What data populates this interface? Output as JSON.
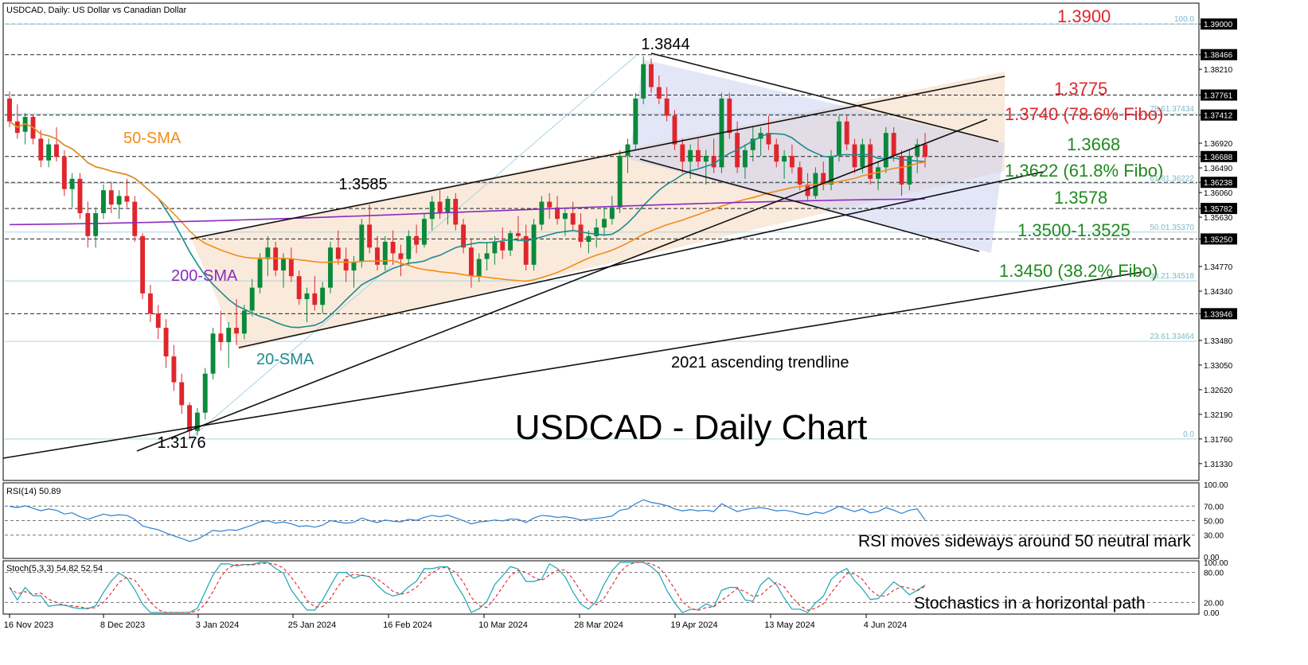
{
  "header": {
    "symbol_line": "USDCAD, Daily:  US Dollar vs Canadian Dollar",
    "rsi_line": "RSI(14) 50.89",
    "stoch_line": "Stoch(5,3,3) 54.82 52.54"
  },
  "colors": {
    "bull": "#0a8a3a",
    "bear": "#e0262c",
    "sma20": "#1c8c8c",
    "sma50": "#f28c1a",
    "sma200": "#8a2bbf",
    "red_label": "#e0262c",
    "green_label": "#1f8a1f",
    "fibo_text": "#7fb8c8",
    "channel_fill": "#f6dcc4",
    "triangle_fill": "#c8cdf0",
    "rsi_line": "#2c7fd0",
    "stoch_main": "#1ba5b5",
    "stoch_signal": "#e0262c"
  },
  "chart_data": {
    "type": "candlestick",
    "title": "USDCAD - Daily Chart",
    "symbol": "USDCAD",
    "timeframe": "Daily",
    "ylim": [
      1.3105,
      1.3935
    ],
    "y_ticks": [
      "1.39000",
      "1.38466",
      "1.38210",
      "1.37761",
      "1.37412",
      "1.36920",
      "1.36688",
      "1.36490",
      "1.36238",
      "1.36060",
      "1.35782",
      "1.35630",
      "1.35250",
      "1.34770",
      "1.34340",
      "1.33946",
      "1.33480",
      "1.33050",
      "1.32620",
      "1.32190",
      "1.31760",
      "1.31330"
    ],
    "x_ticks": [
      "16 Nov 2023",
      "8 Dec 2023",
      "3 Jan 2024",
      "25 Jan 2024",
      "16 Feb 2024",
      "10 Mar 2024",
      "28 Mar 2024",
      "19 Apr 2024",
      "13 May 2024",
      "4 Jun 2024"
    ],
    "horizontal_levels": [
      1.39,
      1.38466,
      1.37761,
      1.37412,
      1.36688,
      1.36238,
      1.35782,
      1.3525,
      1.33946
    ],
    "fibonacci_levels": [
      {
        "label": "100.0",
        "value": 1.39
      },
      {
        "label": "78.61.37434",
        "value": 1.37434
      },
      {
        "label": "61.81.36222",
        "value": 1.36222
      },
      {
        "label": "50.01.35370",
        "value": 1.3537
      },
      {
        "label": "38.21.34518",
        "value": 1.34518
      },
      {
        "label": "23.61.33464",
        "value": 1.33464
      },
      {
        "label": "0.0",
        "value": 1.3176
      }
    ],
    "level_labels": [
      {
        "text": "1.3900",
        "color": "red"
      },
      {
        "text": "1.3775",
        "color": "red"
      },
      {
        "text": "1.3740 (78.6% Fibo)",
        "color": "red"
      },
      {
        "text": "1.3668",
        "color": "green"
      },
      {
        "text": "1.3622 (61.8% Fibo)",
        "color": "green"
      },
      {
        "text": "1.3578",
        "color": "green"
      },
      {
        "text": "1.3500-1.3525",
        "color": "green"
      },
      {
        "text": "1.3450 (38.2% Fibo)",
        "color": "green"
      }
    ],
    "annotations": [
      "1.3844",
      "1.3585",
      "1.3176",
      "50-SMA",
      "200-SMA",
      "20-SMA",
      "2021 ascending trendline"
    ],
    "moving_averages": [
      "20-SMA",
      "50-SMA",
      "200-SMA"
    ],
    "candles_ohlc": [
      [
        1.377,
        1.3782,
        1.372,
        1.373
      ],
      [
        1.373,
        1.376,
        1.37,
        1.371
      ],
      [
        1.3712,
        1.3745,
        1.369,
        1.3738
      ],
      [
        1.3738,
        1.3742,
        1.369,
        1.37
      ],
      [
        1.37,
        1.3715,
        1.365,
        1.3662
      ],
      [
        1.3662,
        1.37,
        1.365,
        1.369
      ],
      [
        1.369,
        1.372,
        1.366,
        1.3668
      ],
      [
        1.3668,
        1.368,
        1.36,
        1.3612
      ],
      [
        1.3612,
        1.364,
        1.358,
        1.363
      ],
      [
        1.363,
        1.364,
        1.356,
        1.357
      ],
      [
        1.357,
        1.359,
        1.351,
        1.353
      ],
      [
        1.353,
        1.358,
        1.351,
        1.357
      ],
      [
        1.357,
        1.362,
        1.356,
        1.361
      ],
      [
        1.361,
        1.3625,
        1.357,
        1.3585
      ],
      [
        1.3585,
        1.361,
        1.356,
        1.36
      ],
      [
        1.36,
        1.363,
        1.358,
        1.359
      ],
      [
        1.359,
        1.36,
        1.352,
        1.353
      ],
      [
        1.353,
        1.3535,
        1.342,
        1.343
      ],
      [
        1.343,
        1.3445,
        1.338,
        1.3395
      ],
      [
        1.3395,
        1.341,
        1.335,
        1.337
      ],
      [
        1.337,
        1.3385,
        1.33,
        1.332
      ],
      [
        1.332,
        1.334,
        1.326,
        1.3275
      ],
      [
        1.3275,
        1.329,
        1.322,
        1.3235
      ],
      [
        1.3235,
        1.324,
        1.3176,
        1.319
      ],
      [
        1.319,
        1.323,
        1.3182,
        1.3222
      ],
      [
        1.3222,
        1.33,
        1.321,
        1.329
      ],
      [
        1.329,
        1.337,
        1.328,
        1.336
      ],
      [
        1.336,
        1.34,
        1.333,
        1.3345
      ],
      [
        1.3345,
        1.338,
        1.33,
        1.337
      ],
      [
        1.337,
        1.342,
        1.334,
        1.336
      ],
      [
        1.336,
        1.341,
        1.335,
        1.34
      ],
      [
        1.34,
        1.3455,
        1.339,
        1.344
      ],
      [
        1.344,
        1.35,
        1.343,
        1.349
      ],
      [
        1.349,
        1.353,
        1.346,
        1.351
      ],
      [
        1.351,
        1.352,
        1.346,
        1.347
      ],
      [
        1.347,
        1.35,
        1.344,
        1.349
      ],
      [
        1.349,
        1.351,
        1.345,
        1.346
      ],
      [
        1.346,
        1.347,
        1.341,
        1.342
      ],
      [
        1.342,
        1.344,
        1.338,
        1.343
      ],
      [
        1.343,
        1.346,
        1.34,
        1.341
      ],
      [
        1.341,
        1.345,
        1.3395,
        1.344
      ],
      [
        1.344,
        1.352,
        1.343,
        1.351
      ],
      [
        1.351,
        1.354,
        1.348,
        1.349
      ],
      [
        1.349,
        1.351,
        1.345,
        1.347
      ],
      [
        1.347,
        1.3495,
        1.344,
        1.3485
      ],
      [
        1.3485,
        1.356,
        1.3475,
        1.355
      ],
      [
        1.355,
        1.3585,
        1.35,
        1.351
      ],
      [
        1.351,
        1.353,
        1.347,
        1.348
      ],
      [
        1.348,
        1.353,
        1.347,
        1.352
      ],
      [
        1.352,
        1.354,
        1.348,
        1.35
      ],
      [
        1.35,
        1.3515,
        1.346,
        1.349
      ],
      [
        1.349,
        1.354,
        1.348,
        1.353
      ],
      [
        1.353,
        1.355,
        1.35,
        1.3515
      ],
      [
        1.3515,
        1.357,
        1.351,
        1.356
      ],
      [
        1.356,
        1.36,
        1.354,
        1.359
      ],
      [
        1.359,
        1.361,
        1.356,
        1.357
      ],
      [
        1.357,
        1.36,
        1.355,
        1.3595
      ],
      [
        1.3595,
        1.3605,
        1.354,
        1.355
      ],
      [
        1.355,
        1.356,
        1.35,
        1.351
      ],
      [
        1.351,
        1.3525,
        1.344,
        1.346
      ],
      [
        1.346,
        1.35,
        1.345,
        1.349
      ],
      [
        1.349,
        1.352,
        1.347,
        1.35
      ],
      [
        1.35,
        1.353,
        1.348,
        1.352
      ],
      [
        1.352,
        1.3545,
        1.349,
        1.3505
      ],
      [
        1.3505,
        1.354,
        1.3495,
        1.3535
      ],
      [
        1.3535,
        1.3565,
        1.352,
        1.353
      ],
      [
        1.353,
        1.355,
        1.347,
        1.348
      ],
      [
        1.348,
        1.356,
        1.347,
        1.355
      ],
      [
        1.355,
        1.36,
        1.354,
        1.359
      ],
      [
        1.359,
        1.3605,
        1.356,
        1.358
      ],
      [
        1.358,
        1.36,
        1.355,
        1.356
      ],
      [
        1.356,
        1.358,
        1.353,
        1.357
      ],
      [
        1.357,
        1.359,
        1.354,
        1.355
      ],
      [
        1.355,
        1.357,
        1.351,
        1.352
      ],
      [
        1.352,
        1.354,
        1.35,
        1.353
      ],
      [
        1.353,
        1.356,
        1.351,
        1.3545
      ],
      [
        1.3545,
        1.358,
        1.353,
        1.356
      ],
      [
        1.356,
        1.36,
        1.355,
        1.358
      ],
      [
        1.358,
        1.368,
        1.357,
        1.367
      ],
      [
        1.367,
        1.37,
        1.364,
        1.369
      ],
      [
        1.369,
        1.378,
        1.368,
        1.377
      ],
      [
        1.377,
        1.3844,
        1.376,
        1.383
      ],
      [
        1.383,
        1.384,
        1.378,
        1.379
      ],
      [
        1.379,
        1.381,
        1.376,
        1.377
      ],
      [
        1.377,
        1.379,
        1.373,
        1.374
      ],
      [
        1.374,
        1.375,
        1.368,
        1.369
      ],
      [
        1.369,
        1.37,
        1.364,
        1.366
      ],
      [
        1.366,
        1.369,
        1.363,
        1.368
      ],
      [
        1.368,
        1.37,
        1.365,
        1.366
      ],
      [
        1.366,
        1.368,
        1.362,
        1.367
      ],
      [
        1.367,
        1.37,
        1.364,
        1.365
      ],
      [
        1.365,
        1.378,
        1.364,
        1.377
      ],
      [
        1.377,
        1.378,
        1.37,
        1.371
      ],
      [
        1.371,
        1.373,
        1.364,
        1.365
      ],
      [
        1.365,
        1.369,
        1.363,
        1.368
      ],
      [
        1.368,
        1.372,
        1.366,
        1.37
      ],
      [
        1.37,
        1.372,
        1.367,
        1.371
      ],
      [
        1.371,
        1.374,
        1.368,
        1.369
      ],
      [
        1.369,
        1.37,
        1.365,
        1.366
      ],
      [
        1.366,
        1.368,
        1.363,
        1.367
      ],
      [
        1.367,
        1.369,
        1.364,
        1.365
      ],
      [
        1.365,
        1.366,
        1.361,
        1.362
      ],
      [
        1.362,
        1.364,
        1.359,
        1.36
      ],
      [
        1.36,
        1.365,
        1.3595,
        1.364
      ],
      [
        1.364,
        1.366,
        1.361,
        1.362
      ],
      [
        1.362,
        1.368,
        1.361,
        1.367
      ],
      [
        1.367,
        1.374,
        1.366,
        1.373
      ],
      [
        1.373,
        1.374,
        1.368,
        1.369
      ],
      [
        1.369,
        1.37,
        1.364,
        1.365
      ],
      [
        1.365,
        1.37,
        1.364,
        1.369
      ],
      [
        1.369,
        1.37,
        1.362,
        1.363
      ],
      [
        1.363,
        1.366,
        1.361,
        1.365
      ],
      [
        1.365,
        1.372,
        1.364,
        1.371
      ],
      [
        1.371,
        1.372,
        1.366,
        1.367
      ],
      [
        1.367,
        1.368,
        1.36,
        1.362
      ],
      [
        1.362,
        1.368,
        1.361,
        1.367
      ],
      [
        1.367,
        1.37,
        1.364,
        1.369
      ],
      [
        1.369,
        1.371,
        1.365,
        1.3668
      ]
    ],
    "rsi": {
      "label": "RSI(14)",
      "value": 50.89,
      "levels": [
        30,
        50,
        70
      ],
      "ticks": [
        "100.00",
        "70.00",
        "50.00",
        "30.00",
        "0.00"
      ],
      "ylim": [
        0,
        100
      ]
    },
    "stochastic": {
      "label": "Stoch(5,3,3)",
      "main": 54.82,
      "signal": 52.54,
      "levels": [
        20,
        80
      ],
      "ticks": [
        "100.00",
        "80.00",
        "20.00",
        "0.00"
      ],
      "ylim": [
        0,
        100
      ]
    }
  },
  "rsi_panel": {
    "caption": "RSI moves sideways around 50 neutral mark"
  },
  "stoch_panel": {
    "caption": "Stochastics in a horizontal path"
  }
}
